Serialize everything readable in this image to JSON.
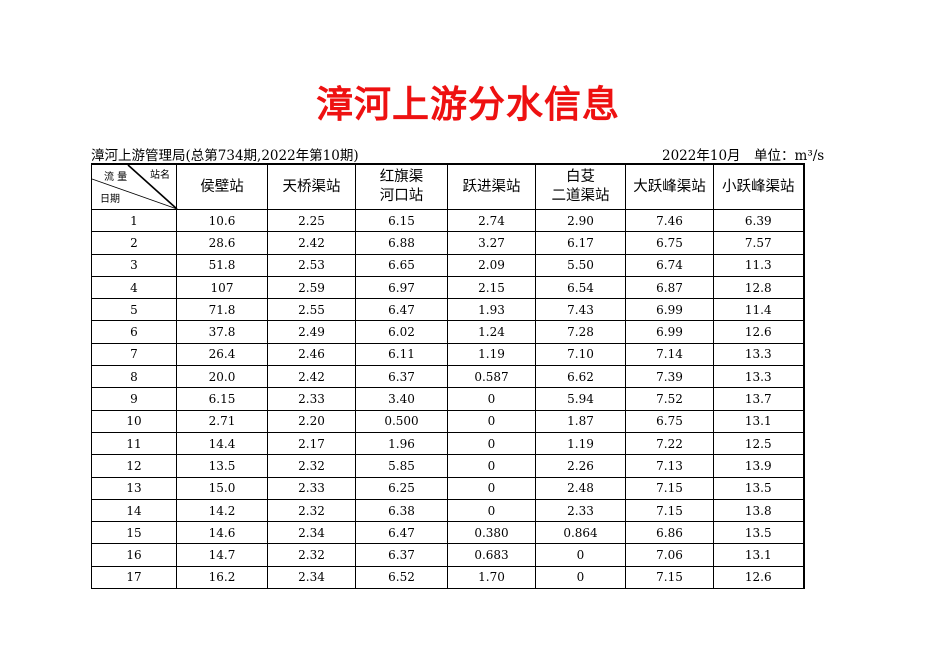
{
  "title": "漳河上游分水信息",
  "subtitle_left": "漳河上游管理局(总第734期,2022年第10期)",
  "subtitle_right": "2022年10月　单位：m³/s",
  "header": {
    "corner_station": "站名",
    "corner_flow": "流 量",
    "corner_date": "日期",
    "stations": [
      "侯壁站",
      "天桥渠站",
      "红旗渠\n河口站",
      "跃进渠站",
      "白芟\n二道渠站",
      "大跃峰渠站",
      "小跃峰渠站"
    ]
  },
  "rows": [
    [
      "1",
      "10.6",
      "2.25",
      "6.15",
      "2.74",
      "2.90",
      "7.46",
      "6.39"
    ],
    [
      "2",
      "28.6",
      "2.42",
      "6.88",
      "3.27",
      "6.17",
      "6.75",
      "7.57"
    ],
    [
      "3",
      "51.8",
      "2.53",
      "6.65",
      "2.09",
      "5.50",
      "6.74",
      "11.3"
    ],
    [
      "4",
      "107",
      "2.59",
      "6.97",
      "2.15",
      "6.54",
      "6.87",
      "12.8"
    ],
    [
      "5",
      "71.8",
      "2.55",
      "6.47",
      "1.93",
      "7.43",
      "6.99",
      "11.4"
    ],
    [
      "6",
      "37.8",
      "2.49",
      "6.02",
      "1.24",
      "7.28",
      "6.99",
      "12.6"
    ],
    [
      "7",
      "26.4",
      "2.46",
      "6.11",
      "1.19",
      "7.10",
      "7.14",
      "13.3"
    ],
    [
      "8",
      "20.0",
      "2.42",
      "6.37",
      "0.587",
      "6.62",
      "7.39",
      "13.3"
    ],
    [
      "9",
      "6.15",
      "2.33",
      "3.40",
      "0",
      "5.94",
      "7.52",
      "13.7"
    ],
    [
      "10",
      "2.71",
      "2.20",
      "0.500",
      "0",
      "1.87",
      "6.75",
      "13.1"
    ],
    [
      "11",
      "14.4",
      "2.17",
      "1.96",
      "0",
      "1.19",
      "7.22",
      "12.5"
    ],
    [
      "12",
      "13.5",
      "2.32",
      "5.85",
      "0",
      "2.26",
      "7.13",
      "13.9"
    ],
    [
      "13",
      "15.0",
      "2.33",
      "6.25",
      "0",
      "2.48",
      "7.15",
      "13.5"
    ],
    [
      "14",
      "14.2",
      "2.32",
      "6.38",
      "0",
      "2.33",
      "7.15",
      "13.8"
    ],
    [
      "15",
      "14.6",
      "2.34",
      "6.47",
      "0.380",
      "0.864",
      "6.86",
      "13.5"
    ],
    [
      "16",
      "14.7",
      "2.32",
      "6.37",
      "0.683",
      "0",
      "7.06",
      "13.1"
    ],
    [
      "17",
      "16.2",
      "2.34",
      "6.52",
      "1.70",
      "0",
      "7.15",
      "12.6"
    ]
  ],
  "colors": {
    "title": "#ee1111"
  }
}
